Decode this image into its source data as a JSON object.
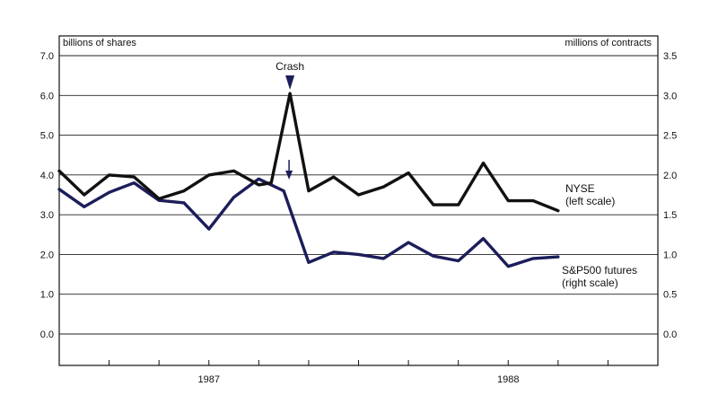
{
  "chart_data": {
    "type": "line",
    "ylabel_left": "billions of shares",
    "ylabel_right": "millions of contracts",
    "ylim_left": [
      0,
      7
    ],
    "ylim_right": [
      0,
      3.5
    ],
    "yticks_left": [
      "0.0",
      "1.0",
      "2.0",
      "3.0",
      "4.0",
      "5.0",
      "6.0",
      "7.0"
    ],
    "yticks_right": [
      "0.0",
      "0.5",
      "1.0",
      "1.5",
      "2.0",
      "2.5",
      "3.0",
      "3.5"
    ],
    "xlabels": [
      {
        "label": "1987",
        "x": 12
      },
      {
        "label": "1988",
        "x": 36
      }
    ],
    "xlim": [
      0,
      48
    ],
    "grid": true,
    "annotation": {
      "text": "Crash",
      "x": 18.5
    },
    "series": [
      {
        "name": "NYSE",
        "label_lines": [
          "NYSE",
          "(left scale)"
        ],
        "axis": "left",
        "color": "#111111",
        "x": [
          0,
          2,
          4,
          6,
          8,
          10,
          12,
          14,
          16,
          17,
          18.5,
          20,
          22,
          24,
          26,
          28,
          30,
          32,
          34,
          36,
          38,
          40
        ],
        "y": [
          4.1,
          3.5,
          4.0,
          3.95,
          3.4,
          3.6,
          4.0,
          4.1,
          3.75,
          3.8,
          6.05,
          3.6,
          3.95,
          3.5,
          3.7,
          4.05,
          3.25,
          3.25,
          4.3,
          3.35,
          3.35,
          3.1
        ]
      },
      {
        "name": "S&P500 futures",
        "label_lines": [
          "S&P500 futures",
          "(right scale)"
        ],
        "axis": "right",
        "color": "#1c1d5a",
        "x": [
          0,
          2,
          4,
          6,
          8,
          10,
          12,
          14,
          16,
          18,
          20,
          22,
          24,
          26,
          28,
          30,
          32,
          34,
          36,
          38,
          40
        ],
        "y": [
          1.82,
          1.6,
          1.78,
          1.9,
          1.68,
          1.65,
          1.32,
          1.72,
          1.95,
          1.8,
          0.9,
          1.03,
          1.0,
          0.95,
          1.15,
          0.98,
          0.92,
          1.2,
          0.85,
          0.95,
          0.97
        ]
      }
    ]
  }
}
